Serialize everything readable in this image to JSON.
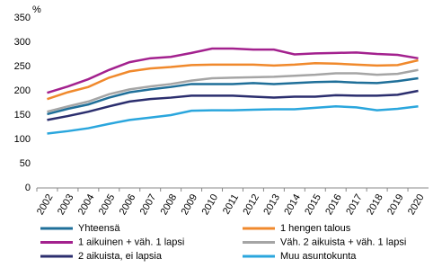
{
  "chart_data": {
    "type": "line",
    "y_label": "%",
    "categories": [
      "2002",
      "2003",
      "2004",
      "2005",
      "2006",
      "2007",
      "2008",
      "2009",
      "2010",
      "2011",
      "2012",
      "2013",
      "2014",
      "2015",
      "2016",
      "2017",
      "2018",
      "2019",
      "2020"
    ],
    "ylim": [
      0,
      350
    ],
    "yticks": [
      0,
      50,
      100,
      150,
      200,
      250,
      300,
      350
    ],
    "grid": false,
    "series": [
      {
        "name": "Yhteensä",
        "color": "#1f6f99",
        "values": [
          152,
          163,
          172,
          186,
          197,
          203,
          208,
          214,
          214,
          214,
          216,
          214,
          216,
          218,
          219,
          217,
          216,
          220,
          226
        ]
      },
      {
        "name": "1 hengen talous",
        "color": "#f0892c",
        "values": [
          183,
          197,
          208,
          227,
          240,
          246,
          249,
          253,
          254,
          254,
          254,
          252,
          254,
          257,
          256,
          254,
          252,
          253,
          263
        ]
      },
      {
        "name": "1 aikuinen + väh. 1 lapsi",
        "color": "#a3218e",
        "values": [
          196,
          209,
          224,
          243,
          259,
          267,
          270,
          278,
          287,
          287,
          285,
          285,
          275,
          277,
          278,
          279,
          276,
          274,
          267
        ]
      },
      {
        "name": "Väh. 2 aikuista + väh. 1 lapsi",
        "color": "#a5a5a5",
        "values": [
          157,
          168,
          178,
          193,
          203,
          209,
          214,
          221,
          226,
          227,
          228,
          229,
          231,
          233,
          236,
          236,
          233,
          235,
          243
        ]
      },
      {
        "name": "2 aikuista, ei lapsia",
        "color": "#2b2e6e",
        "values": [
          140,
          148,
          157,
          168,
          178,
          183,
          186,
          190,
          190,
          190,
          188,
          186,
          188,
          188,
          191,
          190,
          190,
          192,
          200
        ]
      },
      {
        "name": "Muu asuntokunta",
        "color": "#2aa6dd",
        "values": [
          112,
          117,
          123,
          132,
          140,
          145,
          150,
          159,
          160,
          160,
          161,
          162,
          162,
          165,
          168,
          166,
          160,
          163,
          168
        ]
      }
    ]
  }
}
